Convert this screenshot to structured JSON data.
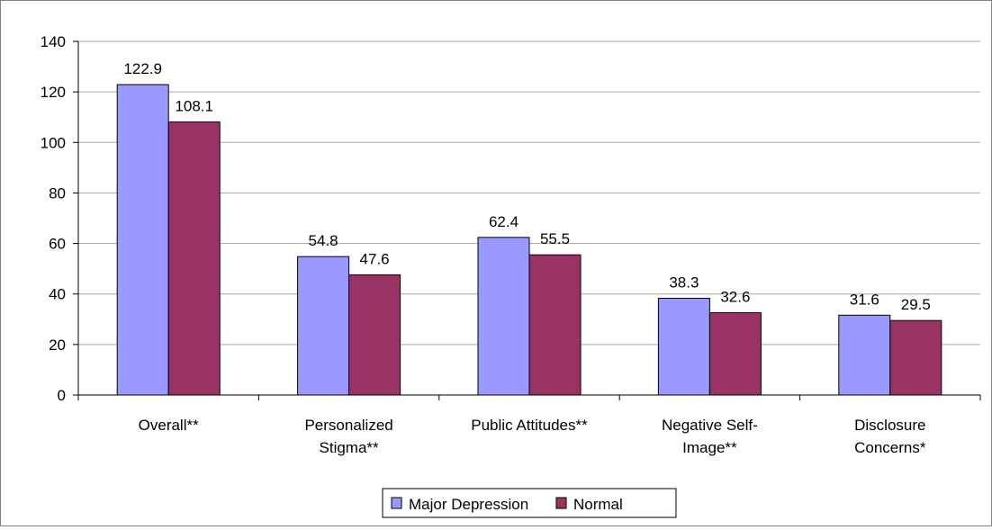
{
  "chart_data": {
    "type": "bar",
    "title": "",
    "xlabel": "",
    "ylabel": "",
    "ylim": [
      0,
      140
    ],
    "y_ticks": [
      "0",
      "20",
      "40",
      "60",
      "80",
      "100",
      "120",
      "140"
    ],
    "grid": true,
    "legend_position": "bottom",
    "categories": [
      [
        "Overall**"
      ],
      [
        "Personalized",
        "Stigma**"
      ],
      [
        "Public Attitudes**"
      ],
      [
        "Negative Self-",
        "Image**"
      ],
      [
        "Disclosure",
        "Concerns*"
      ]
    ],
    "series": [
      {
        "name": "Major Depression",
        "color": "#9999ff",
        "values": [
          122.9,
          54.8,
          62.4,
          38.3,
          31.6
        ],
        "labels": [
          "122.9",
          "54.8",
          "62.4",
          "38.3",
          "31.6"
        ]
      },
      {
        "name": "Normal",
        "color": "#993366",
        "values": [
          108.1,
          47.6,
          55.5,
          32.6,
          29.5
        ],
        "labels": [
          "108.1",
          "47.6",
          "55.5",
          "32.6",
          "29.5"
        ]
      }
    ]
  }
}
